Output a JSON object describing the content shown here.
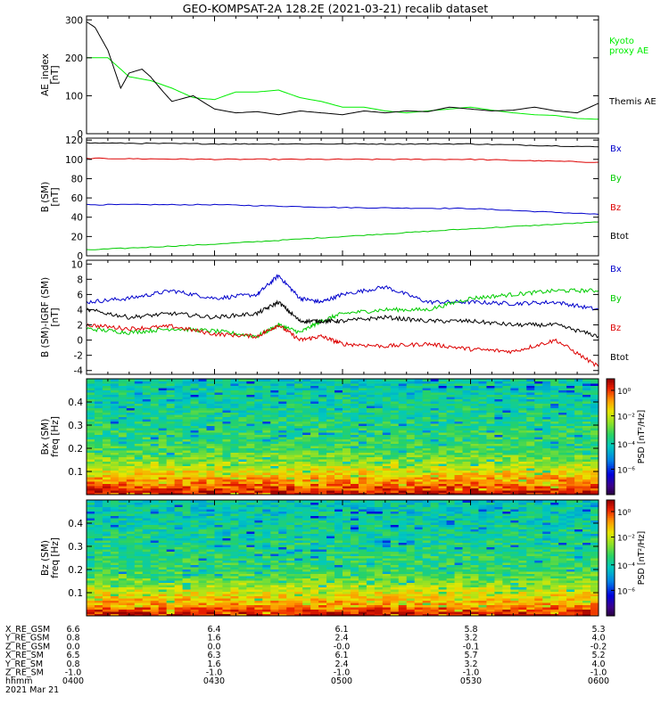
{
  "title": "GEO-KOMPSAT-2A 128.2E (2021-03-21) recalib dataset",
  "chart_data": [
    {
      "type": "line",
      "ylabel": "AE_index\n[nT]",
      "ylim": [
        0,
        310
      ],
      "yticks": [
        "0",
        "100",
        "200",
        "300"
      ],
      "xlim": [
        "04:00",
        "06:00"
      ],
      "series": [
        {
          "name": "Kyoto\nproxy AE",
          "color": "#00ee00",
          "x": [
            "04:00",
            "04:05",
            "04:10",
            "04:15",
            "04:20",
            "04:25",
            "04:30",
            "04:35",
            "04:40",
            "04:45",
            "04:50",
            "04:55",
            "05:00",
            "05:05",
            "05:10",
            "05:15",
            "05:20",
            "05:25",
            "05:30",
            "05:35",
            "05:40",
            "05:45",
            "05:50",
            "05:55",
            "06:00"
          ],
          "values": [
            200,
            200,
            150,
            140,
            120,
            95,
            90,
            110,
            110,
            115,
            95,
            85,
            70,
            70,
            60,
            55,
            60,
            65,
            70,
            62,
            55,
            50,
            48,
            40,
            38
          ]
        },
        {
          "name": "Themis AE",
          "color": "#000000",
          "x": [
            "04:00",
            "04:02",
            "04:05",
            "04:08",
            "04:10",
            "04:13",
            "04:15",
            "04:18",
            "04:20",
            "04:25",
            "04:30",
            "04:35",
            "04:40",
            "04:45",
            "04:50",
            "04:55",
            "05:00",
            "05:05",
            "05:10",
            "05:15",
            "05:20",
            "05:25",
            "05:30",
            "05:35",
            "05:40",
            "05:45",
            "05:50",
            "05:55",
            "06:00"
          ],
          "values": [
            295,
            280,
            220,
            120,
            160,
            170,
            150,
            110,
            85,
            100,
            65,
            55,
            58,
            50,
            60,
            55,
            50,
            60,
            55,
            60,
            58,
            70,
            65,
            60,
            62,
            70,
            60,
            55,
            80
          ]
        }
      ]
    },
    {
      "type": "line",
      "ylabel": "B (SM)\n[nT]",
      "ylim": [
        0,
        122
      ],
      "yticks": [
        "0",
        "20",
        "40",
        "60",
        "80",
        "100",
        "120"
      ],
      "xlim": [
        "04:00",
        "06:00"
      ],
      "series": [
        {
          "name": "Bx",
          "color": "#0000cc",
          "x": [
            "04:00",
            "04:30",
            "05:00",
            "05:30",
            "06:00"
          ],
          "values": [
            53,
            53,
            50,
            49,
            43
          ]
        },
        {
          "name": "By",
          "color": "#00cc00",
          "x": [
            "04:00",
            "04:30",
            "05:00",
            "05:30",
            "06:00"
          ],
          "values": [
            6,
            12,
            20,
            28,
            35
          ]
        },
        {
          "name": "Bz",
          "color": "#dd0000",
          "x": [
            "04:00",
            "04:30",
            "05:00",
            "05:30",
            "06:00"
          ],
          "values": [
            101,
            100,
            100,
            100,
            97
          ]
        },
        {
          "name": "Btot",
          "color": "#000000",
          "x": [
            "04:00",
            "04:30",
            "05:00",
            "05:30",
            "06:00"
          ],
          "values": [
            117,
            116,
            116,
            116,
            113
          ]
        }
      ]
    },
    {
      "type": "line",
      "ylabel": "B (SM)-IGRF (SM)\n[nT]",
      "ylim": [
        -4.5,
        10.5
      ],
      "yticks": [
        "-4",
        "-2",
        "0",
        "2",
        "4",
        "6",
        "8",
        "10"
      ],
      "xlim": [
        "04:00",
        "06:00"
      ],
      "series": [
        {
          "name": "Bx",
          "color": "#0000cc",
          "x": [
            "04:00",
            "04:10",
            "04:20",
            "04:30",
            "04:40",
            "04:45",
            "04:50",
            "04:55",
            "05:00",
            "05:10",
            "05:20",
            "05:30",
            "05:40",
            "05:50",
            "06:00"
          ],
          "values": [
            5,
            5.5,
            6.5,
            5.5,
            6,
            8.5,
            5.5,
            5,
            6,
            7,
            5,
            5,
            4.8,
            5,
            4
          ]
        },
        {
          "name": "By",
          "color": "#00cc00",
          "x": [
            "04:00",
            "04:10",
            "04:20",
            "04:30",
            "04:40",
            "04:45",
            "04:50",
            "04:55",
            "05:00",
            "05:10",
            "05:20",
            "05:30",
            "05:40",
            "05:50",
            "06:00"
          ],
          "values": [
            1.5,
            1,
            1.5,
            1.2,
            0.5,
            2,
            1,
            2.5,
            3.5,
            4,
            4,
            5.5,
            6,
            6.5,
            6.5
          ]
        },
        {
          "name": "Bz",
          "color": "#dd0000",
          "x": [
            "04:00",
            "04:10",
            "04:20",
            "04:30",
            "04:40",
            "04:45",
            "04:50",
            "04:55",
            "05:00",
            "05:10",
            "05:20",
            "05:30",
            "05:40",
            "05:50",
            "06:00"
          ],
          "values": [
            2,
            1.5,
            1.8,
            0.8,
            0.5,
            2,
            0,
            0.5,
            -0.5,
            -0.8,
            -0.5,
            -1.2,
            -1.5,
            0,
            -3.5
          ]
        },
        {
          "name": "Btot",
          "color": "#000000",
          "x": [
            "04:00",
            "04:10",
            "04:20",
            "04:30",
            "04:40",
            "04:45",
            "04:50",
            "04:55",
            "05:00",
            "05:10",
            "05:20",
            "05:30",
            "05:40",
            "05:50",
            "06:00"
          ],
          "values": [
            4,
            3,
            3.5,
            3,
            3.5,
            5,
            2.5,
            2.5,
            2.5,
            3,
            2.5,
            2.5,
            2,
            2,
            0.5
          ]
        }
      ]
    },
    {
      "type": "heatmap",
      "ylabel": "Bx (SM)\nfreq [Hz]",
      "ylim": [
        0,
        0.5
      ],
      "yticks": [
        "0.1",
        "0.2",
        "0.3",
        "0.4"
      ],
      "xlim": [
        "04:00",
        "06:00"
      ],
      "colorbar_label": "PSD [nT²/Hz]",
      "colorbar_range": [
        "10^-8",
        "10^1"
      ],
      "colorbar_ticks": [
        "10⁰",
        "10⁻²",
        "10⁻⁴",
        "10⁻⁶"
      ],
      "x": [
        "04:00",
        "04:30",
        "05:00",
        "05:30",
        "06:00"
      ],
      "freq_band_log10_psd": {
        "freq": [
          0.01,
          0.05,
          0.1,
          0.15,
          0.2,
          0.3,
          0.4,
          0.5
        ],
        "values": [
          0.5,
          -0.5,
          -1.5,
          -2.5,
          -3.2,
          -3.5,
          -3.8,
          -4.0
        ]
      }
    },
    {
      "type": "heatmap",
      "ylabel": "Bz (SM)\nfreq [Hz]",
      "ylim": [
        0,
        0.5
      ],
      "yticks": [
        "0.1",
        "0.2",
        "0.3",
        "0.4"
      ],
      "xlim": [
        "04:00",
        "06:00"
      ],
      "colorbar_label": "PSD [nT²/Hz]",
      "colorbar_range": [
        "10^-8",
        "10^1"
      ],
      "colorbar_ticks": [
        "10⁰",
        "10⁻²",
        "10⁻⁴",
        "10⁻⁶"
      ],
      "x": [
        "04:00",
        "04:30",
        "05:00",
        "05:30",
        "06:00"
      ],
      "freq_band_log10_psd": {
        "freq": [
          0.01,
          0.05,
          0.1,
          0.15,
          0.2,
          0.3,
          0.4,
          0.5
        ],
        "values": [
          0.5,
          -0.8,
          -1.6,
          -2.6,
          -3.3,
          -3.6,
          -3.9,
          -4.1
        ]
      }
    }
  ],
  "ephemeris": {
    "rows": [
      {
        "label": "X_RE_GSM",
        "values": [
          "6.6",
          "6.4",
          "6.1",
          "5.8",
          "5.3"
        ]
      },
      {
        "label": "Y_RE_GSM",
        "values": [
          "0.8",
          "1.6",
          "2.4",
          "3.2",
          "4.0"
        ]
      },
      {
        "label": "Z_RE_GSM",
        "values": [
          "0.0",
          "0.0",
          "-0.0",
          "-0.1",
          "-0.2"
        ]
      },
      {
        "label": "X_RE_SM",
        "values": [
          "6.5",
          "6.3",
          "6.1",
          "5.7",
          "5.2"
        ]
      },
      {
        "label": "Y_RE_SM",
        "values": [
          "0.8",
          "1.6",
          "2.4",
          "3.2",
          "4.0"
        ]
      },
      {
        "label": "Z_RE_SM",
        "values": [
          "-1.0",
          "-1.0",
          "-1.0",
          "-1.0",
          "-1.0"
        ]
      },
      {
        "label": "hhmm",
        "values": [
          "0400",
          "0430",
          "0500",
          "0530",
          "0600"
        ]
      }
    ],
    "date": "2021 Mar 21"
  }
}
